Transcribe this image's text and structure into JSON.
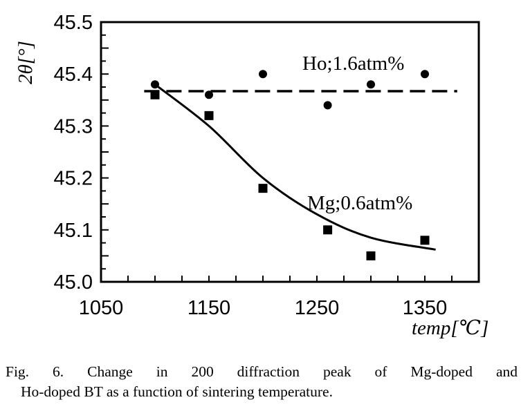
{
  "chart_data": {
    "type": "scatter",
    "xlabel": "temp[℃]",
    "ylabel": "2θ[°]",
    "xlim": [
      1050,
      1400
    ],
    "ylim": [
      45.0,
      45.5
    ],
    "xticks": [
      1050,
      1150,
      1250,
      1350
    ],
    "yticks": [
      45.0,
      45.1,
      45.2,
      45.3,
      45.4,
      45.5
    ],
    "grid": false,
    "series": [
      {
        "name": "Ho;1.6atm%",
        "marker": "circle",
        "points": [
          [
            1100,
            45.38
          ],
          [
            1150,
            45.36
          ],
          [
            1200,
            45.4
          ],
          [
            1260,
            45.34
          ],
          [
            1300,
            45.38
          ],
          [
            1350,
            45.4
          ]
        ],
        "fit": {
          "style": "dashed",
          "points": [
            [
              1090,
              45.367
            ],
            [
              1380,
              45.367
            ]
          ]
        }
      },
      {
        "name": "Mg;0.6atm%",
        "marker": "square",
        "points": [
          [
            1100,
            45.36
          ],
          [
            1150,
            45.32
          ],
          [
            1200,
            45.18
          ],
          [
            1260,
            45.1
          ],
          [
            1300,
            45.05
          ],
          [
            1350,
            45.08
          ]
        ],
        "fit": {
          "style": "solid",
          "points": [
            [
              1100,
              45.38
            ],
            [
              1150,
              45.3
            ],
            [
              1200,
              45.2
            ],
            [
              1250,
              45.13
            ],
            [
              1300,
              45.085
            ],
            [
              1360,
              45.062
            ]
          ]
        }
      }
    ]
  },
  "caption": {
    "line1": "Fig. 6. Change in 200 diffraction peak of Mg-doped and",
    "line2": "Ho-doped BT as a function of sintering temperature."
  }
}
